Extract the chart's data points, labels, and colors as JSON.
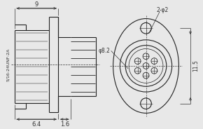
{
  "bg_color": "#e8e8e8",
  "line_color": "#222222",
  "dim_color": "#333333",
  "fig_width": 2.9,
  "fig_height": 1.84,
  "dpi": 100,
  "annotations": {
    "dim_9_text": "9",
    "dim_6p4_text": "6.4",
    "dim_1p6_text": "1.6",
    "dim_8p2_text": "φ8.2",
    "dim_11p5_text": "11.5",
    "dim_2phi2_text": "2-φ2",
    "thread_label": "5/16-24UNF-2A"
  }
}
